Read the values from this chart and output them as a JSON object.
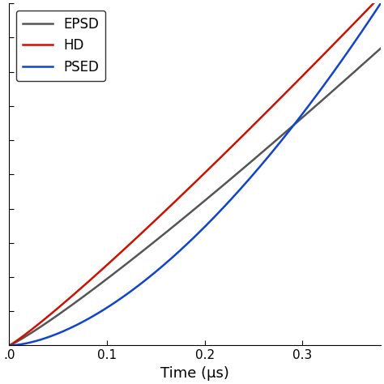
{
  "title": "",
  "xlabel": "Time (μs)",
  "ylabel": "",
  "xlim": [
    0,
    0.38
  ],
  "ylim": [
    0,
    1.0
  ],
  "x_ticks": [
    0.0,
    0.1,
    0.2,
    0.3
  ],
  "x_tick_labels": [
    ".0",
    "0.1",
    "0.2",
    "0.3"
  ],
  "legend": [
    "EPSD",
    "HD",
    "PSED"
  ],
  "colors": {
    "EPSD": "#555555",
    "HD": "#cc1100",
    "PSED": "#1144cc"
  },
  "linewidth": 1.8,
  "background_color": "#ffffff",
  "epsd_power": 1.12,
  "epsd_scale": 0.52,
  "hd_power": 1.1,
  "hd_scale": 0.6,
  "psed_power": 1.65,
  "psed_scale": 1.0
}
